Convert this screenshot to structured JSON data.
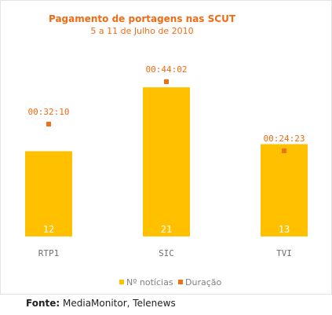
{
  "chart_data": {
    "type": "bar",
    "title": "Pagamento de portagens nas SCUT",
    "subtitle": "5 a 11 de Julho de 2010",
    "categories": [
      "RTP1",
      "SIC",
      "TVI"
    ],
    "series": [
      {
        "name": "Nº notícias",
        "values": [
          12,
          21,
          13
        ],
        "color": "#ffc000",
        "kind": "bar"
      },
      {
        "name": "Duração",
        "values": [
          "00:32:10",
          "00:44:02",
          "00:24:23"
        ],
        "seconds": [
          1930,
          2642,
          1463
        ],
        "color": "#f07018",
        "kind": "point"
      }
    ],
    "xlabel": "",
    "ylabel": "",
    "legend_position": "bottom",
    "grid": false
  },
  "source": {
    "label": "Fonte:",
    "text": "MediaMonitor, Telenews"
  }
}
